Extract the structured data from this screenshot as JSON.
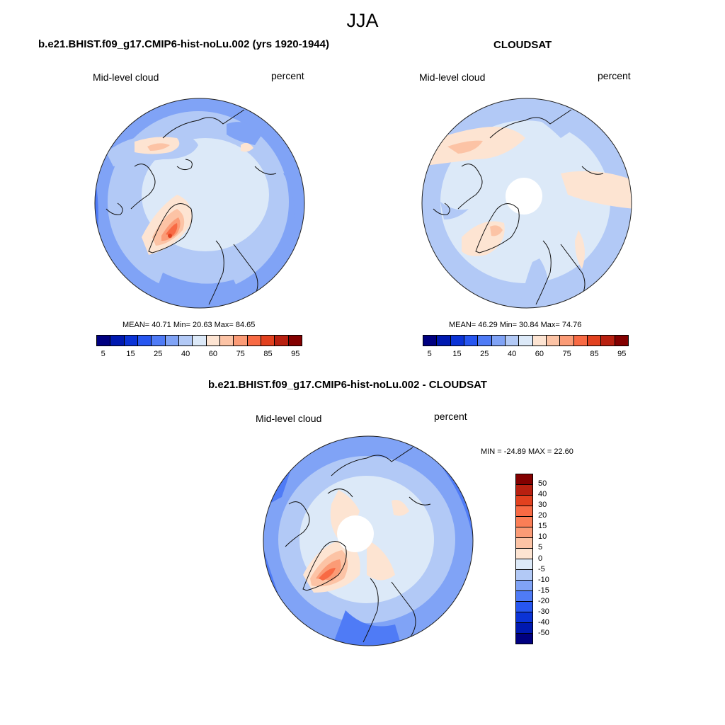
{
  "figure": {
    "season": "JJA"
  },
  "panels": [
    {
      "title": "b.e21.BHIST.f09_g17.CMIP6-hist-noLu.002 (yrs 1920-1944)",
      "left_label": "Mid-level cloud",
      "right_label": "percent",
      "stats": "MEAN=  40.71  Min=  20.63  Max=  84.65"
    },
    {
      "title": "CLOUDSAT",
      "left_label": "Mid-level cloud",
      "right_label": "percent",
      "stats": "MEAN=  46.29  Min=  30.84  Max=  74.76"
    },
    {
      "title": "b.e21.BHIST.f09_g17.CMIP6-hist-noLu.002 - CLOUDSAT",
      "left_label": "Mid-level cloud",
      "right_label": "percent",
      "stats": "MIN = -24.89 MAX =  22.60"
    }
  ],
  "colorbar_abs": {
    "tick_labels": [
      "5",
      "15",
      "25",
      "40",
      "60",
      "75",
      "85",
      "95"
    ],
    "colors": [
      "#000080",
      "#0019b0",
      "#0b33d6",
      "#2756f0",
      "#4f7bf6",
      "#80a3f6",
      "#b2c9f6",
      "#dce9f8",
      "#fde4d2",
      "#fcc3a5",
      "#fb9b76",
      "#f86a44",
      "#e2411f",
      "#b82010",
      "#830000"
    ]
  },
  "colorbar_diff": {
    "tick_labels": [
      "50",
      "40",
      "30",
      "20",
      "15",
      "10",
      "5",
      "0",
      "-5",
      "-10",
      "-15",
      "-20",
      "-30",
      "-40",
      "-50"
    ],
    "colors": [
      "#830000",
      "#b82010",
      "#e2411f",
      "#f86a44",
      "#fb7e56",
      "#fb9b76",
      "#fcc3a5",
      "#fde4d2",
      "#dce9f8",
      "#b2c9f6",
      "#80a3f6",
      "#4f7bf6",
      "#2756f0",
      "#0b33d6",
      "#0019b0",
      "#000080"
    ]
  }
}
